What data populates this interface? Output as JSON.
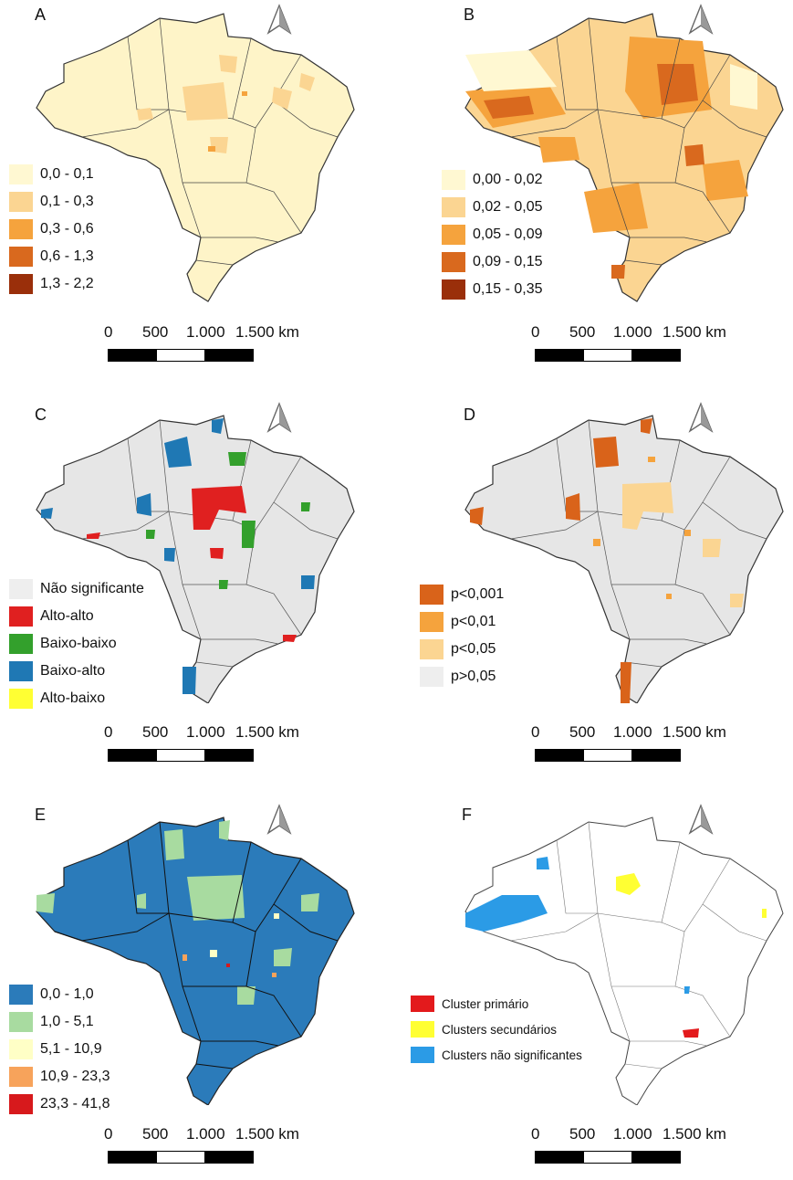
{
  "panels": [
    {
      "letter": "A",
      "colors": [
        "#fff8d2",
        "#fbd592",
        "#f5a33d",
        "#d9691e",
        "#9a2f0a"
      ],
      "base": "#fef4c8",
      "legend": [
        "0,0 - 0,1",
        "0,1 - 0,3",
        "0,3 - 0,6",
        "0,6 - 1,3",
        "1,3 - 2,2"
      ]
    },
    {
      "letter": "B",
      "colors": [
        "#fff8d2",
        "#fbd592",
        "#f5a33d",
        "#d9691e",
        "#9a2f0a"
      ],
      "base": "#fbd592",
      "legend": [
        "0,00 - 0,02",
        "0,02 - 0,05",
        "0,05 - 0,09",
        "0,09 - 0,15",
        "0,15 - 0,35"
      ]
    },
    {
      "letter": "C",
      "colors": [
        "#eeeeee",
        "#e02020",
        "#33a02c",
        "#1f78b4",
        "#ffff33"
      ],
      "base": "#e6e6e6",
      "legend": [
        "Não significante",
        "Alto-alto",
        "Baixo-baixo",
        "Baixo-alto",
        "Alto-baixo"
      ]
    },
    {
      "letter": "D",
      "colors": [
        "#d9631a",
        "#f5a33d",
        "#fbd592",
        "#eeeeee"
      ],
      "base": "#e6e6e6",
      "legend": [
        "p<0,001",
        "p<0,01",
        "p<0,05",
        "p>0,05"
      ]
    },
    {
      "letter": "E",
      "colors": [
        "#2b7bba",
        "#a8dba0",
        "#ffffc6",
        "#f7a35b",
        "#d7191c"
      ],
      "base": "#2b7bba",
      "legend": [
        "0,0 - 1,0",
        "1,0 - 5,1",
        "5,1 - 10,9",
        "10,9 - 23,3",
        "23,3 - 41,8"
      ]
    },
    {
      "letter": "F",
      "colors": [
        "#e31a1c",
        "#ffff33",
        "#2b9be6"
      ],
      "base": "#ffffff",
      "legend": [
        "Cluster primário",
        "Clusters secundários",
        "Clusters não significantes"
      ]
    }
  ],
  "scale_labels": [
    "0",
    "500",
    "1.000",
    "1.500 km"
  ],
  "icons": {
    "north": "north-arrow-icon"
  }
}
